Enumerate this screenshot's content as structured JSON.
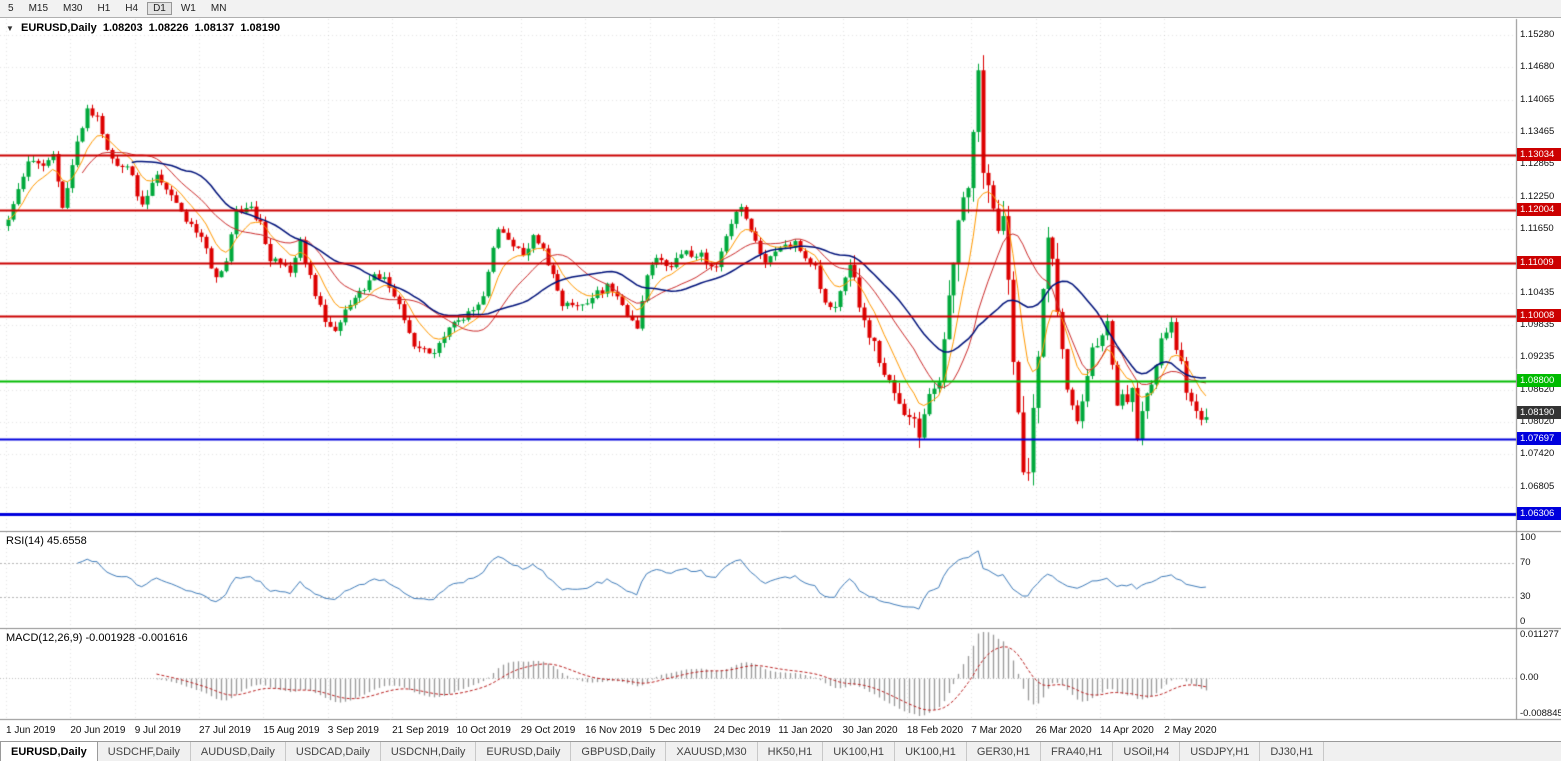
{
  "toolbar": {
    "timeframes": [
      {
        "label": "5",
        "active": false
      },
      {
        "label": "M15",
        "active": false
      },
      {
        "label": "M30",
        "active": false
      },
      {
        "label": "H1",
        "active": false
      },
      {
        "label": "H4",
        "active": false
      },
      {
        "label": "D1",
        "active": true
      },
      {
        "label": "W1",
        "active": false
      },
      {
        "label": "MN",
        "active": false
      }
    ]
  },
  "header": {
    "collapse_icon": "▼",
    "title": "EURUSD,Daily",
    "open": "1.08203",
    "high": "1.08226",
    "low": "1.08137",
    "close": "1.08190"
  },
  "price_axis": {
    "labels": [
      {
        "text": "1.15280",
        "price": 1.1528
      },
      {
        "text": "1.14680",
        "price": 1.1468
      },
      {
        "text": "1.14065",
        "price": 1.14065
      },
      {
        "text": "1.13465",
        "price": 1.13465
      },
      {
        "text": "1.12865",
        "price": 1.12865
      },
      {
        "text": "1.12250",
        "price": 1.1225
      },
      {
        "text": "1.11650",
        "price": 1.1165
      },
      {
        "text": "1.10435",
        "price": 1.10435
      },
      {
        "text": "1.09835",
        "price": 1.09835
      },
      {
        "text": "1.09235",
        "price": 1.09235
      },
      {
        "text": "1.08620",
        "price": 1.0862
      },
      {
        "text": "1.08020",
        "price": 1.0802
      },
      {
        "text": "1.07420",
        "price": 1.0742
      },
      {
        "text": "1.06805",
        "price": 1.06805
      }
    ]
  },
  "hlines": [
    {
      "text": "1.13034",
      "price": 1.13034,
      "color": "#cc0000",
      "lw": 2
    },
    {
      "text": "1.12004",
      "price": 1.12004,
      "color": "#cc0000",
      "lw": 2
    },
    {
      "text": "1.11009",
      "price": 1.11009,
      "color": "#cc0000",
      "lw": 2
    },
    {
      "text": "1.10008",
      "price": 1.10008,
      "color": "#cc0000",
      "lw": 2
    },
    {
      "text": "1.08800",
      "price": 1.088,
      "color": "#00bb00",
      "lw": 2
    },
    {
      "text": "1.07697",
      "price": 1.07697,
      "color": "#0000dd",
      "lw": 2
    },
    {
      "text": "1.06306",
      "price": 1.06306,
      "color": "#0000dd",
      "lw": 3
    }
  ],
  "price_tag": {
    "text": "1.08190",
    "price": 1.0819,
    "bg": "#333333"
  },
  "date_axis": {
    "labels": [
      "1 Jun 2019",
      "20 Jun 2019",
      "9 Jul 2019",
      "27 Jul 2019",
      "15 Aug 2019",
      "3 Sep 2019",
      "21 Sep 2019",
      "10 Oct 2019",
      "29 Oct 2019",
      "16 Nov 2019",
      "5 Dec 2019",
      "24 Dec 2019",
      "11 Jan 2020",
      "30 Jan 2020",
      "18 Feb 2020",
      "7 Mar 2020",
      "26 Mar 2020",
      "14 Apr 2020",
      "2 May 2020"
    ]
  },
  "rsi": {
    "name": "RSI(14)",
    "value": "45.6558",
    "color": "#3f7cba",
    "levels": [
      70,
      30
    ],
    "axis_labels": [
      {
        "text": "100",
        "v": 100
      },
      {
        "text": "70",
        "v": 70
      },
      {
        "text": "30",
        "v": 30
      },
      {
        "text": "0",
        "v": 0
      }
    ]
  },
  "macd": {
    "name": "MACD(12,26,9)",
    "value_main": "-0.001928",
    "value_signal": "-0.001616",
    "hist_color": "#9a9a9a",
    "signal_color": "#bb2222",
    "axis_labels": [
      {
        "text": "0.011277",
        "pos": "max"
      },
      {
        "text": "0.00",
        "pos": "zero"
      },
      {
        "text": "-0.008845",
        "pos": "min"
      }
    ]
  },
  "tabs": [
    {
      "label": "EURUSD,Daily",
      "active": true
    },
    {
      "label": "USDCHF,Daily",
      "active": false
    },
    {
      "label": "AUDUSD,Daily",
      "active": false
    },
    {
      "label": "USDCAD,Daily",
      "active": false
    },
    {
      "label": "USDCNH,Daily",
      "active": false
    },
    {
      "label": "EURUSD,Daily",
      "active": false
    },
    {
      "label": "GBPUSD,Daily",
      "active": false
    },
    {
      "label": "XAUUSD,M30",
      "active": false
    },
    {
      "label": "HK50,H1",
      "active": false
    },
    {
      "label": "UK100,H1",
      "active": false
    },
    {
      "label": "UK100,H1",
      "active": false
    },
    {
      "label": "GER30,H1",
      "active": false
    },
    {
      "label": "FRA40,H1",
      "active": false
    },
    {
      "label": "USOil,H4",
      "active": false
    },
    {
      "label": "USDJPY,H1",
      "active": false
    },
    {
      "label": "DJ30,H1",
      "active": false
    }
  ],
  "chart_data": {
    "type": "candlestick",
    "symbol": "EURUSD",
    "timeframe": "Daily",
    "bars": 243,
    "bars_per_label": 13,
    "price_top": 1.1558,
    "price_bottom": 1.06,
    "up_color": "#00a93c",
    "down_color": "#dd0000",
    "ma_lines": [
      {
        "period": 8,
        "type": "ema",
        "color": "#ff9900",
        "width": 1
      },
      {
        "period": 16,
        "type": "sma",
        "color": "#cc2b2b",
        "width": 1
      },
      {
        "period": 26,
        "type": "sma",
        "color": "#00127a",
        "width": 1.5
      }
    ],
    "anchors": [
      [
        0,
        1.1175
      ],
      [
        2,
        1.124
      ],
      [
        4,
        1.1295
      ],
      [
        6,
        1.128
      ],
      [
        9,
        1.1305
      ],
      [
        11,
        1.12
      ],
      [
        13,
        1.129
      ],
      [
        16,
        1.1395
      ],
      [
        18,
        1.1368
      ],
      [
        21,
        1.129
      ],
      [
        24,
        1.1282
      ],
      [
        27,
        1.1208
      ],
      [
        30,
        1.1262
      ],
      [
        33,
        1.1225
      ],
      [
        36,
        1.118
      ],
      [
        39,
        1.1142
      ],
      [
        42,
        1.1076
      ],
      [
        44,
        1.1108
      ],
      [
        46,
        1.1198
      ],
      [
        49,
        1.1199
      ],
      [
        51,
        1.1171
      ],
      [
        53,
        1.1109
      ],
      [
        57,
        1.1086
      ],
      [
        59,
        1.1144
      ],
      [
        60,
        1.1101
      ],
      [
        64,
        1.0989
      ],
      [
        66,
        1.0971
      ],
      [
        69,
        1.1028
      ],
      [
        74,
        1.1073
      ],
      [
        76,
        1.1072
      ],
      [
        79,
        1.1017
      ],
      [
        82,
        1.0942
      ],
      [
        86,
        1.0932
      ],
      [
        89,
        1.0979
      ],
      [
        93,
        1.1004
      ],
      [
        96,
        1.1034
      ],
      [
        99,
        1.117
      ],
      [
        100,
        1.115
      ],
      [
        104,
        1.1113
      ],
      [
        106,
        1.1152
      ],
      [
        108,
        1.1128
      ],
      [
        112,
        1.1018
      ],
      [
        116,
        1.1021
      ],
      [
        121,
        1.1058
      ],
      [
        124,
        1.1021
      ],
      [
        127,
        1.0981
      ],
      [
        129,
        1.1081
      ],
      [
        131,
        1.1104
      ],
      [
        134,
        1.1093
      ],
      [
        137,
        1.1121
      ],
      [
        140,
        1.1113
      ],
      [
        143,
        1.1088
      ],
      [
        146,
        1.1177
      ],
      [
        148,
        1.1212
      ],
      [
        150,
        1.116
      ],
      [
        153,
        1.1103
      ],
      [
        155,
        1.1122
      ],
      [
        159,
        1.1136
      ],
      [
        163,
        1.1093
      ],
      [
        165,
        1.1023
      ],
      [
        167,
        1.1022
      ],
      [
        170,
        1.1094
      ],
      [
        171,
        1.106
      ],
      [
        173,
        1.1
      ],
      [
        175,
        1.0946
      ],
      [
        178,
        1.0873
      ],
      [
        180,
        1.0831
      ],
      [
        184,
        1.0786
      ],
      [
        186,
        1.0854
      ],
      [
        188,
        1.088
      ],
      [
        190,
        1.1026
      ],
      [
        192,
        1.1173
      ],
      [
        194,
        1.1239
      ],
      [
        196,
        1.1446
      ],
      [
        197,
        1.1281
      ],
      [
        199,
        1.1184
      ],
      [
        201,
        1.118
      ],
      [
        203,
        1.0915
      ],
      [
        205,
        1.0694
      ],
      [
        206,
        1.0725
      ],
      [
        209,
        1.103
      ],
      [
        210,
        1.1141
      ],
      [
        212,
        1.1031
      ],
      [
        214,
        1.0855
      ],
      [
        216,
        1.0793
      ],
      [
        219,
        1.0936
      ],
      [
        222,
        1.098
      ],
      [
        224,
        1.084
      ],
      [
        227,
        1.0858
      ],
      [
        228,
        1.077
      ],
      [
        229,
        1.0822
      ],
      [
        231,
        1.0875
      ],
      [
        233,
        1.0955
      ],
      [
        235,
        1.098
      ],
      [
        237,
        1.0905
      ],
      [
        239,
        1.0834
      ],
      [
        241,
        1.081
      ],
      [
        242,
        1.0819
      ]
    ],
    "vol_zones": [
      {
        "from": 0,
        "to": 44,
        "amp": 0.0017
      },
      {
        "from": 44,
        "to": 170,
        "amp": 0.0015
      },
      {
        "from": 170,
        "to": 190,
        "amp": 0.0028
      },
      {
        "from": 190,
        "to": 213,
        "amp": 0.005
      },
      {
        "from": 213,
        "to": 243,
        "amp": 0.0026
      }
    ]
  }
}
